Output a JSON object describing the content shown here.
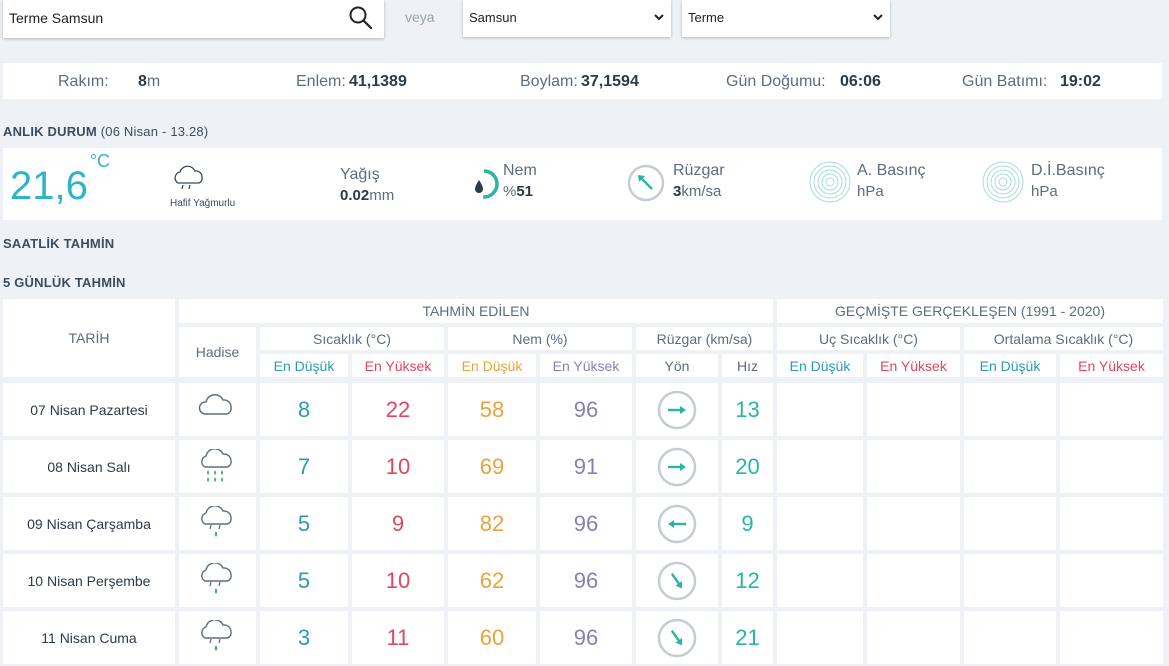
{
  "search": {
    "value": "Terme Samsun",
    "placeholder": ""
  },
  "veya": "veya",
  "province_select": {
    "value": "Samsun"
  },
  "district_select": {
    "value": "Terme"
  },
  "info": {
    "rakim_label": "Rakım:",
    "rakim_value": "8",
    "rakim_unit": "m",
    "enlem_label": "Enlem:",
    "enlem_value": "41,1389",
    "boylam_label": "Boylam:",
    "boylam_value": "37,1594",
    "gundogumu_label": "Gün Doğumu:",
    "gundogumu_value": "06:06",
    "gunbatimi_label": "Gün Batımı:",
    "gunbatimi_value": "19:02"
  },
  "current": {
    "title": "ANLIK DURUM",
    "subtitle": "(06 Nisan - 13.28)",
    "temperature": "21,6",
    "temp_unit": "°C",
    "condition": "Hafif Yağmurlu",
    "yagis_label": "Yağış",
    "yagis_value": "0.02",
    "yagis_unit": "mm",
    "nem_label": "Nem",
    "nem_prefix": "%",
    "nem_value": "51",
    "nem_fraction": 0.51,
    "ruzgar_label": "Rüzgar",
    "ruzgar_value": "3",
    "ruzgar_unit": "km/sa",
    "abasinc_label": "A. Basınç",
    "abasinc_unit": "hPa",
    "dibasinc_label": "D.İ.Basınç",
    "dibasinc_unit": "hPa"
  },
  "hourly_title": "SAATLİK TAHMİN",
  "forecast_title": "5 GÜNLÜK TAHMİN",
  "table": {
    "tarih": "TARİH",
    "tahmin_edilen": "TAHMİN EDİLEN",
    "gecmiste": "GEÇMİŞTE GERÇEKLEŞEN (1991 - 2020)",
    "hadise": "Hadise",
    "sicaklik": "Sıcaklık (°C)",
    "nem": "Nem (%)",
    "ruzgar": "Rüzgar (km/sa)",
    "uc_sicaklik": "Uç Sıcaklık (°C)",
    "ortalama_sicaklik": "Ortalama Sıcaklık (°C)",
    "en_dusuk": "En Düşük",
    "en_yuksek": "En Yüksek",
    "yon": "Yön",
    "hiz": "Hız",
    "rows": [
      {
        "date": "07 Nisan Pazartesi",
        "icon": "cloud-icon",
        "tmin": "8",
        "tmax": "22",
        "hmin": "58",
        "hmax": "96",
        "wind_dir": "east",
        "speed": "13"
      },
      {
        "date": "08 Nisan Salı",
        "icon": "rain-icon",
        "tmin": "7",
        "tmax": "10",
        "hmin": "69",
        "hmax": "91",
        "wind_dir": "east",
        "speed": "20"
      },
      {
        "date": "09 Nisan Çarşamba",
        "icon": "light-rain-icon",
        "tmin": "5",
        "tmax": "9",
        "hmin": "82",
        "hmax": "96",
        "wind_dir": "west",
        "speed": "9"
      },
      {
        "date": "10 Nisan Perşembe",
        "icon": "light-rain-icon",
        "tmin": "5",
        "tmax": "10",
        "hmin": "62",
        "hmax": "96",
        "wind_dir": "southeast",
        "speed": "12"
      },
      {
        "date": "11 Nisan Cuma",
        "icon": "light-rain-icon",
        "tmin": "3",
        "tmax": "11",
        "hmin": "60",
        "hmax": "96",
        "wind_dir": "southeast",
        "speed": "21"
      }
    ]
  },
  "colors": {
    "teal": "#2c9bb0",
    "red": "#e0475d",
    "orange": "#e9a33a",
    "purple": "#8a7fb4",
    "green": "#2ab5a0",
    "temp": "#2fb4c8"
  }
}
